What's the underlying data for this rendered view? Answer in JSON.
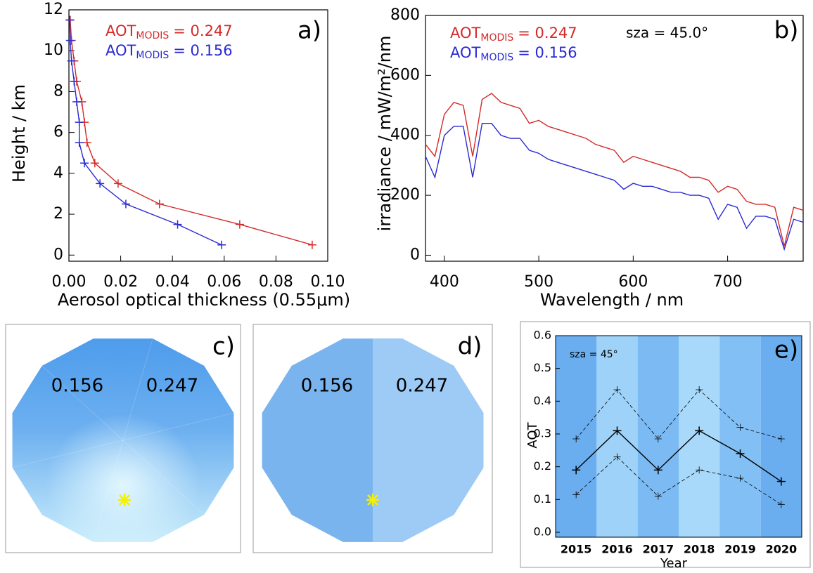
{
  "chart_data": [
    {
      "type": "line",
      "panel_label": "a)",
      "xlabel": "Aerosol optical thickness (0.55μm)",
      "ylabel": "Height / km",
      "xlim": [
        0,
        0.1
      ],
      "ylim": [
        -0.3,
        12
      ],
      "xticks": [
        {
          "value": 0,
          "label": "0.00"
        },
        0.02,
        0.04,
        0.06,
        0.08,
        {
          "value": 0.1,
          "label": "0.10"
        }
      ],
      "yticks": [
        0,
        2,
        4,
        6,
        8,
        10,
        12
      ],
      "series": [
        {
          "legend": {
            "main": "AOT",
            "sub": "MODIS",
            "rest": "= 0.247"
          },
          "color": "#d42a2a",
          "x": [
            0.094,
            0.066,
            0.035,
            0.019,
            0.01,
            0.007,
            0.006,
            0.005,
            0.003,
            0.002,
            0.001,
            0.0005
          ],
          "values": [
            0.5,
            1.5,
            2.5,
            3.5,
            4.5,
            5.5,
            6.5,
            7.5,
            8.5,
            9.5,
            10.5,
            11.5
          ]
        },
        {
          "legend": {
            "main": "AOT",
            "sub": "MODIS",
            "rest": "= 0.156"
          },
          "color": "#2a2ad4",
          "x": [
            0.059,
            0.042,
            0.022,
            0.012,
            0.006,
            0.004,
            0.004,
            0.003,
            0.002,
            0.001,
            0.0005,
            0.0003
          ],
          "values": [
            0.5,
            1.5,
            2.5,
            3.5,
            4.5,
            5.5,
            6.5,
            7.5,
            8.5,
            9.5,
            10.5,
            11.5
          ]
        }
      ]
    },
    {
      "type": "line",
      "panel_label": "b)",
      "xlabel": "Wavelength / nm",
      "ylabel": "irradiance / mW/m²/nm",
      "annotation": "sza = 45.0°",
      "xlim": [
        380,
        780
      ],
      "ylim": [
        -20,
        800
      ],
      "xticks": [
        400,
        500,
        600,
        700
      ],
      "yticks": [
        0,
        200,
        400,
        600,
        800
      ],
      "x": [
        380,
        390,
        400,
        410,
        420,
        430,
        440,
        450,
        460,
        470,
        480,
        490,
        500,
        510,
        520,
        530,
        540,
        550,
        560,
        570,
        580,
        590,
        600,
        610,
        620,
        630,
        640,
        650,
        660,
        670,
        680,
        690,
        700,
        710,
        720,
        730,
        740,
        750,
        760,
        770,
        780
      ],
      "series": [
        {
          "legend": {
            "main": "AOT",
            "sub": "MODIS",
            "rest": "= 0.247"
          },
          "color": "#d42a2a",
          "values": [
            370,
            330,
            470,
            510,
            500,
            330,
            520,
            540,
            510,
            500,
            490,
            440,
            450,
            430,
            420,
            410,
            400,
            390,
            370,
            360,
            350,
            310,
            330,
            320,
            310,
            300,
            290,
            280,
            260,
            260,
            250,
            210,
            230,
            220,
            180,
            170,
            170,
            160,
            30,
            160,
            150
          ]
        },
        {
          "legend": {
            "main": "AOT",
            "sub": "MODIS",
            "rest": "= 0.156"
          },
          "color": "#2a2ad4",
          "values": [
            330,
            260,
            400,
            430,
            430,
            260,
            440,
            440,
            400,
            390,
            390,
            350,
            340,
            320,
            310,
            300,
            290,
            280,
            270,
            260,
            250,
            220,
            240,
            230,
            230,
            220,
            210,
            210,
            200,
            200,
            190,
            120,
            170,
            160,
            90,
            130,
            130,
            120,
            20,
            120,
            110
          ]
        }
      ]
    },
    {
      "type": "skymap",
      "panel_label": "c)",
      "left_text": "0.156",
      "right_text": "0.247"
    },
    {
      "type": "skymap-split",
      "panel_label": "d)",
      "left_text": "0.156",
      "right_text": "0.247"
    },
    {
      "type": "category-line",
      "panel_label": "e)",
      "xlabel": "Year",
      "ylabel": "AOT",
      "annotation": "sza = 45°",
      "categories": [
        "2015",
        "2016",
        "2017",
        "2018",
        "2019",
        "2020"
      ],
      "ylim": [
        -0.015,
        0.6
      ],
      "yticks": [
        {
          "value": 0,
          "label": "0.0"
        },
        0.1,
        0.2,
        0.3,
        0.4,
        0.5,
        0.6
      ],
      "series": [
        {
          "color": "#000000",
          "style": "dashed",
          "values": [
            0.285,
            0.435,
            0.285,
            0.435,
            0.32,
            0.285
          ]
        },
        {
          "color": "#000000",
          "style": "solid",
          "values": [
            0.19,
            0.31,
            0.19,
            0.31,
            0.24,
            0.155
          ]
        },
        {
          "color": "#000000",
          "style": "dashed",
          "values": [
            0.115,
            0.23,
            0.11,
            0.19,
            0.165,
            0.085
          ]
        }
      ]
    }
  ]
}
